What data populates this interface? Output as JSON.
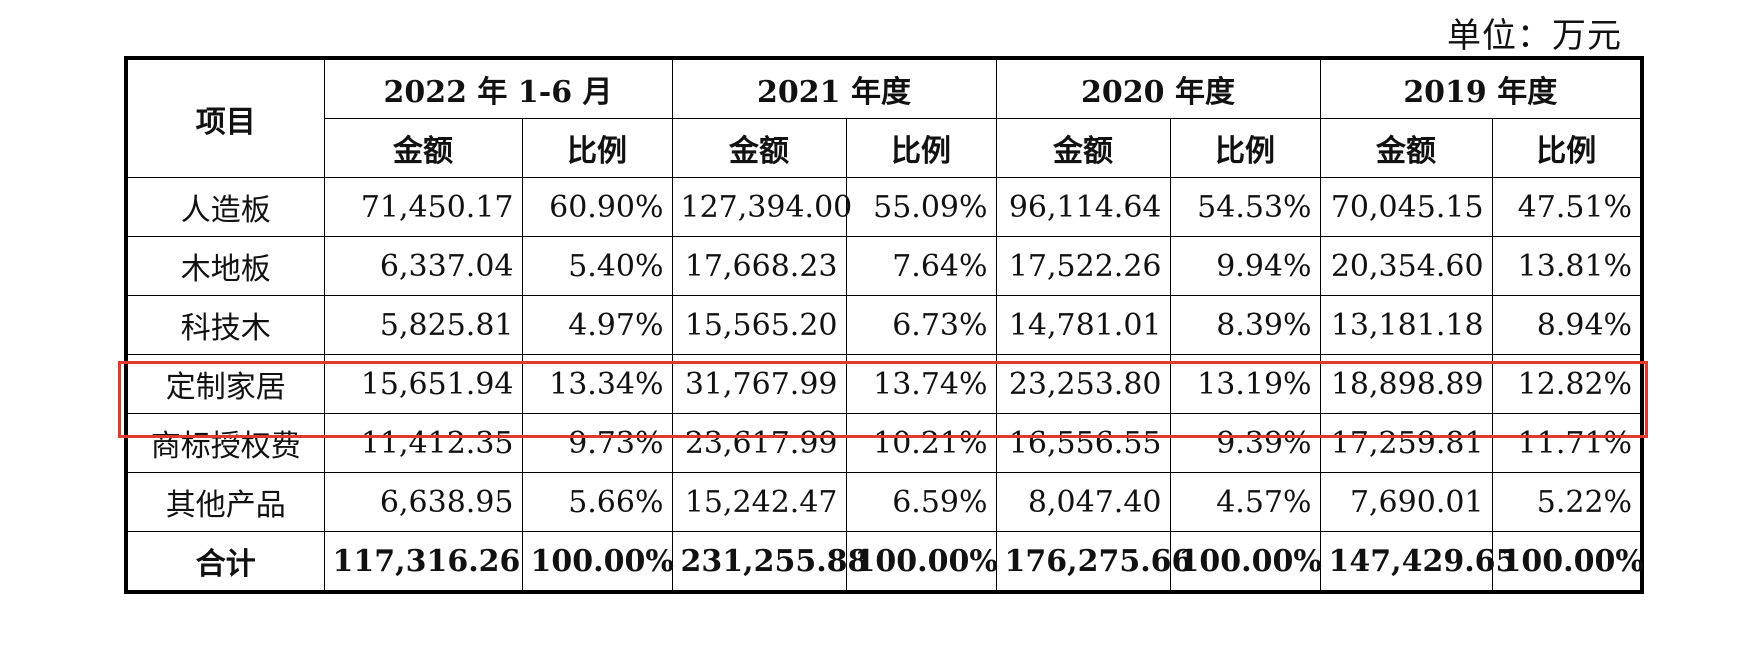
{
  "unit_label": "单位：万元",
  "header": {
    "item_label": "项目",
    "periods": [
      "2022 年 1-6 月",
      "2021 年度",
      "2020 年度",
      "2019 年度"
    ],
    "amount_label": "金额",
    "ratio_label": "比例"
  },
  "rows": [
    {
      "item": "人造板",
      "cells": [
        "71,450.17",
        "60.90%",
        "127,394.00",
        "55.09%",
        "96,114.64",
        "54.53%",
        "70,045.15",
        "47.51%"
      ]
    },
    {
      "item": "木地板",
      "cells": [
        "6,337.04",
        "5.40%",
        "17,668.23",
        "7.64%",
        "17,522.26",
        "9.94%",
        "20,354.60",
        "13.81%"
      ]
    },
    {
      "item": "科技木",
      "cells": [
        "5,825.81",
        "4.97%",
        "15,565.20",
        "6.73%",
        "14,781.01",
        "8.39%",
        "13,181.18",
        "8.94%"
      ]
    },
    {
      "item": "定制家居",
      "cells": [
        "15,651.94",
        "13.34%",
        "31,767.99",
        "13.74%",
        "23,253.80",
        "13.19%",
        "18,898.89",
        "12.82%"
      ]
    },
    {
      "item": "商标授权费",
      "cells": [
        "11,412.35",
        "9.73%",
        "23,617.99",
        "10.21%",
        "16,556.55",
        "9.39%",
        "17,259.81",
        "11.71%"
      ]
    },
    {
      "item": "其他产品",
      "cells": [
        "6,638.95",
        "5.66%",
        "15,242.47",
        "6.59%",
        "8,047.40",
        "4.57%",
        "7,690.01",
        "5.22%"
      ]
    }
  ],
  "total": {
    "item": "合计",
    "cells": [
      "117,316.26",
      "100.00%",
      "231,255.88",
      "100.00%",
      "176,275.66",
      "100.00%",
      "147,429.65",
      "100.00%"
    ]
  },
  "highlight_color": "#e03a2f"
}
